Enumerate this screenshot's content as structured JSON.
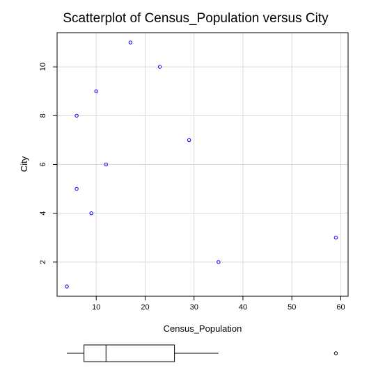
{
  "chart_data": {
    "type": "scatter",
    "title": "Scatterplot of Census_Population versus City",
    "xlabel": "Census_Population",
    "ylabel": "City",
    "xlim": [
      2,
      61.5
    ],
    "ylim": [
      0.6,
      11.4
    ],
    "x_ticks": [
      10,
      20,
      30,
      40,
      50,
      60
    ],
    "y_ticks": [
      2,
      4,
      6,
      8,
      10
    ],
    "x_tick_labels": [
      "10",
      "20",
      "30",
      "40",
      "50",
      "60"
    ],
    "y_tick_labels": [
      "2",
      "4",
      "6",
      "8",
      "10"
    ],
    "grid": true,
    "point_color": "#0000ff",
    "points": [
      {
        "x": 4,
        "y": 1
      },
      {
        "x": 35,
        "y": 2
      },
      {
        "x": 59,
        "y": 3
      },
      {
        "x": 9,
        "y": 4
      },
      {
        "x": 6,
        "y": 5
      },
      {
        "x": 12,
        "y": 6
      },
      {
        "x": 29,
        "y": 7
      },
      {
        "x": 6,
        "y": 8
      },
      {
        "x": 10,
        "y": 9
      },
      {
        "x": 23,
        "y": 10
      },
      {
        "x": 17,
        "y": 11
      }
    ],
    "boxplot": {
      "min": 4,
      "q1": 7.5,
      "median": 12,
      "q3": 26,
      "whisker_high": 35,
      "outliers": [
        59
      ]
    }
  }
}
